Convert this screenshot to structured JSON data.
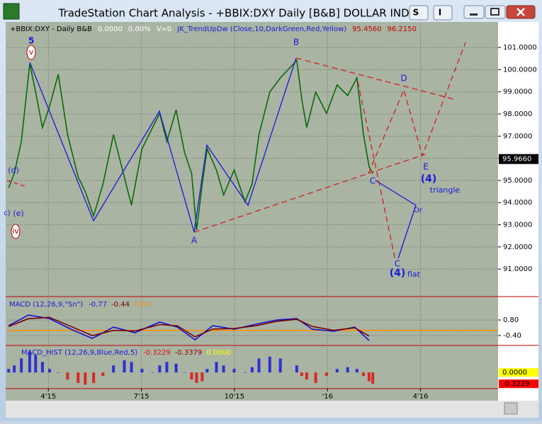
{
  "window": {
    "title": "TradeStation Chart Analysis - +BBIX:DXY Daily [B&B] DOLLAR INDEX",
    "buttons": [
      "S",
      "I"
    ]
  },
  "chart_data": [
    {
      "type": "line",
      "info": [
        "+BBIX:DXY - Daily  B&B",
        "0.0000",
        "0.00%",
        "V=0",
        "JK_TrendUpDw (Close,10,DarkGreen,Red,Yellow)",
        "95.4560",
        "96.2150"
      ],
      "x": [
        1.72,
        1.9,
        2.13,
        2.4,
        2.59,
        2.81,
        3.04,
        3.32,
        3.62,
        3.96,
        4.19,
        4.46,
        4.76,
        5.1,
        5.45,
        5.68,
        6.02,
        6.36,
        6.59,
        6.82,
        7.12,
        7.39,
        7.62,
        7.78,
        7.96,
        8.12,
        8.42,
        8.65,
        8.99,
        9.34,
        9.57,
        9.79,
        10.14,
        10.48,
        11.01,
        11.17,
        11.33,
        11.62,
        11.97,
        12.31,
        12.65,
        12.95,
        13.16,
        13.34,
        13.46
      ],
      "values": [
        94.67,
        95.31,
        96.75,
        100.27,
        98.99,
        97.39,
        98.35,
        99.79,
        97.07,
        95.15,
        94.51,
        93.4,
        94.83,
        97.07,
        95.15,
        93.88,
        96.43,
        97.39,
        98.03,
        96.75,
        98.19,
        96.27,
        95.31,
        92.76,
        94.83,
        96.43,
        95.47,
        94.35,
        95.47,
        94.04,
        94.83,
        97.07,
        98.99,
        99.63,
        100.42,
        98.67,
        97.39,
        98.99,
        98.03,
        99.31,
        98.83,
        99.63,
        97.07,
        95.63,
        95.31
      ],
      "color": "#0a6a0a",
      "last_price": {
        "value": 95.966,
        "label": "95.9660"
      },
      "annotations": [
        "5",
        "v",
        "B",
        "A",
        "C",
        "D",
        "E",
        "(4)",
        "triangle",
        "Or",
        "C",
        "(4)",
        "flat",
        "(d)",
        "c)",
        "(e)",
        "iv"
      ],
      "xlim": [
        1.67,
        17.5
      ],
      "ylim": [
        89.79,
        102.09
      ],
      "yticks": [
        {
          "value": 101,
          "label": "101.0000"
        },
        {
          "value": 100,
          "label": "100.0000"
        },
        {
          "value": 99,
          "label": "99.0000"
        },
        {
          "value": 98,
          "label": "98.0000"
        },
        {
          "value": 97,
          "label": "97.0000"
        },
        {
          "value": 96,
          "label": "96.0000"
        },
        {
          "value": 95,
          "label": "95.0000"
        },
        {
          "value": 94,
          "label": "94.0000"
        },
        {
          "value": 93,
          "label": "93.0000"
        },
        {
          "value": 92,
          "label": "92.0000"
        },
        {
          "value": 91,
          "label": "91.0000"
        }
      ],
      "grid": true
    },
    {
      "type": "line",
      "title": "MACD (12,26,9,\"Sn\")",
      "readouts": [
        "-0.77",
        "-0.44",
        "0.00"
      ],
      "x": [
        1.72,
        2.36,
        3.04,
        3.73,
        4.42,
        5.1,
        5.79,
        6.59,
        7.16,
        7.73,
        8.3,
        8.99,
        9.68,
        10.37,
        11.01,
        11.51,
        12.2,
        12.88,
        13.34
      ],
      "series": [
        {
          "color": "#1010d0",
          "values": [
            0.36,
            1.18,
            0.91,
            0.09,
            -0.62,
            0.25,
            -0.18,
            0.64,
            0.25,
            -0.73,
            0.36,
            0.09,
            0.47,
            0.8,
            0.91,
            0.09,
            -0.07,
            0.25,
            -0.77
          ]
        },
        {
          "color": "#7a0000",
          "values": [
            0.3,
            0.9,
            1.0,
            0.3,
            -0.4,
            0.0,
            -0.05,
            0.45,
            0.35,
            -0.5,
            0.1,
            0.15,
            0.35,
            0.7,
            0.85,
            0.3,
            0.0,
            0.2,
            -0.44
          ]
        }
      ],
      "hline": 0,
      "hline_color": "#ff8c00",
      "xlim": [
        1.67,
        17.5
      ],
      "ylim": [
        -1.16,
        2.44
      ],
      "yticks": [
        {
          "value": 0.8,
          "label": "0.80"
        },
        {
          "value": -0.4,
          "label": "-0.40"
        }
      ],
      "grid": true
    },
    {
      "type": "bar",
      "title": "MACD_HIST (12,26,9,Blue,Red,5)",
      "readouts": [
        "-0.3229",
        "-0.3379",
        "0.0000"
      ],
      "x": [
        1.72,
        1.9,
        2.13,
        2.4,
        2.59,
        2.81,
        3.04,
        3.32,
        3.62,
        3.96,
        4.19,
        4.46,
        4.76,
        5.1,
        5.45,
        5.68,
        6.02,
        6.36,
        6.59,
        6.82,
        7.12,
        7.39,
        7.62,
        7.78,
        7.96,
        8.12,
        8.42,
        8.65,
        8.99,
        9.34,
        9.57,
        9.79,
        10.14,
        10.48,
        11.01,
        11.17,
        11.33,
        11.62,
        11.97,
        12.31,
        12.65,
        12.95,
        13.16,
        13.34,
        13.46
      ],
      "values": [
        0.1,
        0.2,
        0.4,
        0.6,
        0.5,
        0.3,
        0.1,
        0,
        -0.2,
        -0.3,
        -0.35,
        -0.3,
        -0.1,
        0.2,
        0.35,
        0.3,
        0.1,
        0,
        0.2,
        0.3,
        0.25,
        0,
        -0.2,
        -0.3,
        -0.25,
        0.1,
        0.3,
        0.2,
        0.1,
        0,
        0.15,
        0.4,
        0.45,
        0.4,
        0.2,
        -0.1,
        -0.2,
        -0.3,
        -0.1,
        0.1,
        0.15,
        0.1,
        -0.1,
        -0.25,
        -0.3229
      ],
      "colors": [
        "#1a1ad8",
        "#e01010"
      ],
      "markers": [
        {
          "value": 0,
          "label": "0.0000",
          "color": "#ffff00"
        },
        {
          "value": -0.3229,
          "label": "-0.3229",
          "color": "#ff0000"
        }
      ],
      "xlim": [
        1.67,
        17.5
      ],
      "ylim": [
        -0.44,
        0.73
      ],
      "xticks": [
        {
          "value": 3,
          "label": "4'15"
        },
        {
          "value": 6,
          "label": "7'15"
        },
        {
          "value": 9,
          "label": "10'15"
        },
        {
          "value": 12,
          "label": "'16"
        },
        {
          "value": 15,
          "label": "4'16"
        }
      ],
      "grid": true
    }
  ]
}
